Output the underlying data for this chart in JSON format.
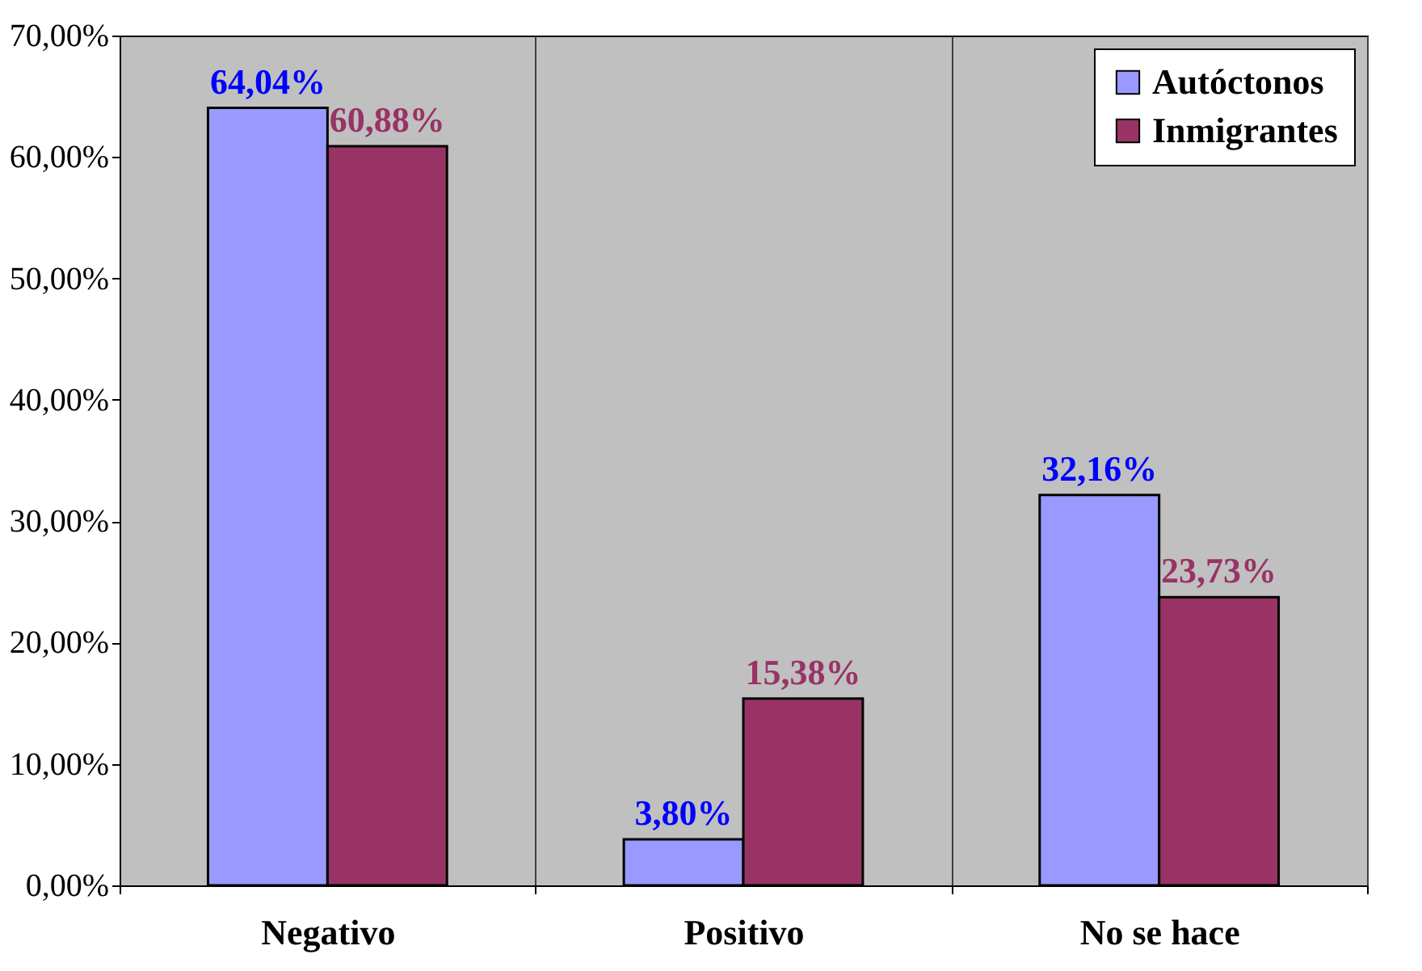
{
  "chart_data": {
    "type": "bar",
    "categories": [
      "Negativo",
      "Positivo",
      "No se hace"
    ],
    "series": [
      {
        "name": "Autóctonos",
        "color": "#9999ff",
        "values": [
          64.04,
          3.8,
          32.16
        ],
        "value_labels": [
          "64,04%",
          "3,80%",
          "32,16%"
        ]
      },
      {
        "name": "Inmigrantes",
        "color": "#993366",
        "values": [
          60.88,
          15.38,
          23.73
        ],
        "value_labels": [
          "60,88%",
          "15,38%",
          "23,73%"
        ]
      }
    ],
    "ylim": [
      0,
      70
    ],
    "yticks": [
      {
        "value": 0,
        "label": "0,00%"
      },
      {
        "value": 10,
        "label": "10,00%"
      },
      {
        "value": 20,
        "label": "20,00%"
      },
      {
        "value": 30,
        "label": "30,00%"
      },
      {
        "value": 40,
        "label": "40,00%"
      },
      {
        "value": 50,
        "label": "50,00%"
      },
      {
        "value": 60,
        "label": "60,00%"
      },
      {
        "value": 70,
        "label": "70,00%"
      }
    ],
    "grid": "x",
    "legend": "top right"
  }
}
